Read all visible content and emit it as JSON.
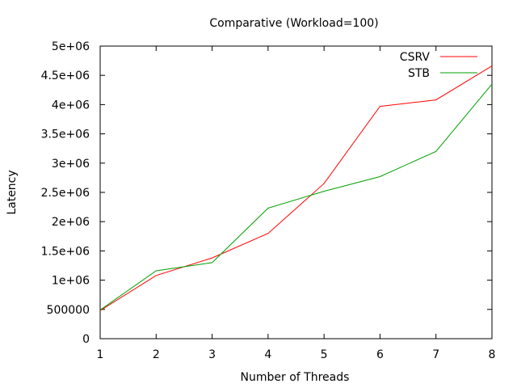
{
  "chart_data": {
    "type": "line",
    "title": "Comparative (Workload=100)",
    "xlabel": "Number of Threads",
    "ylabel": "Latency",
    "xlim": [
      1,
      8
    ],
    "ylim": [
      0,
      5000000
    ],
    "x_ticks": [
      1,
      2,
      3,
      4,
      5,
      6,
      7,
      8
    ],
    "x_tick_labels": [
      "1",
      "2",
      "3",
      "4",
      "5",
      "6",
      "7",
      "8"
    ],
    "y_ticks": [
      0,
      500000,
      1000000,
      1500000,
      2000000,
      2500000,
      3000000,
      3500000,
      4000000,
      4500000,
      5000000
    ],
    "y_tick_labels": [
      "0",
      "500000",
      "1e+06",
      "1.5e+06",
      "2e+06",
      "2.5e+06",
      "3e+06",
      "3.5e+06",
      "4e+06",
      "4.5e+06",
      "5e+06"
    ],
    "grid": false,
    "legend_position": "top-right",
    "x": [
      1,
      2,
      3,
      4,
      5,
      6,
      7,
      8
    ],
    "series": [
      {
        "name": "CSRV",
        "color": "#ff0000",
        "values": [
          480000,
          1080000,
          1380000,
          1800000,
          2650000,
          3970000,
          4080000,
          4660000
        ]
      },
      {
        "name": "STB",
        "color": "#00a000",
        "values": [
          490000,
          1160000,
          1300000,
          2230000,
          2520000,
          2770000,
          3200000,
          4350000
        ]
      }
    ]
  }
}
